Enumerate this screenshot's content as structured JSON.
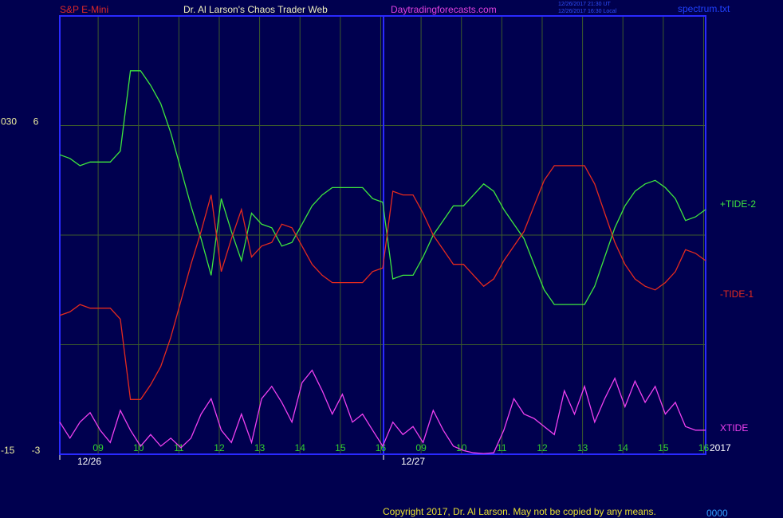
{
  "chart_data": {
    "type": "line",
    "instrument": "S&P E-Mini",
    "title": "Dr. Al Larson's Chaos Trader Web",
    "website": "Daytradingforecasts.com",
    "timestamps": [
      "12/26/2017 21:30 UT",
      "12/26/2017 16:30 Local"
    ],
    "file": "spectrum.txt",
    "year": "2017",
    "copyright": "Copyright 2017, Dr. Al Larson. May not be copied by any means.",
    "counter": "0000",
    "xlim": [
      0,
      16
    ],
    "ylim": [
      -3,
      9
    ],
    "y2lim": [
      -15,
      45
    ],
    "yticks": [
      -3,
      6
    ],
    "y2ticks": [
      -15,
      {
        "value": 30,
        "label": "030"
      }
    ],
    "ygrid": [
      -3,
      0,
      3,
      6,
      9
    ],
    "grid": true,
    "xticks": [
      {
        "value": 0.95,
        "label": "09"
      },
      {
        "value": 1.95,
        "label": "10"
      },
      {
        "value": 2.95,
        "label": "11"
      },
      {
        "value": 3.95,
        "label": "12"
      },
      {
        "value": 4.95,
        "label": "13"
      },
      {
        "value": 5.95,
        "label": "14"
      },
      {
        "value": 6.95,
        "label": "15"
      },
      {
        "value": 7.95,
        "label": "16"
      },
      {
        "value": 8.95,
        "label": "09"
      },
      {
        "value": 9.95,
        "label": "10"
      },
      {
        "value": 10.95,
        "label": "11"
      },
      {
        "value": 11.95,
        "label": "12"
      },
      {
        "value": 12.95,
        "label": "13"
      },
      {
        "value": 13.95,
        "label": "14"
      },
      {
        "value": 14.95,
        "label": "15"
      },
      {
        "value": 15.95,
        "label": "16"
      }
    ],
    "date_ticks": [
      {
        "value": 0,
        "label": "12/26"
      },
      {
        "value": 8.02,
        "label": "12/27"
      }
    ],
    "x": [
      0,
      0.25,
      0.5,
      0.75,
      1,
      1.25,
      1.5,
      1.75,
      2,
      2.25,
      2.5,
      2.75,
      3,
      3.25,
      3.5,
      3.75,
      4,
      4.25,
      4.5,
      4.75,
      5,
      5.25,
      5.5,
      5.75,
      6,
      6.25,
      6.5,
      6.75,
      7,
      7.25,
      7.5,
      7.75,
      8,
      8.25,
      8.5,
      8.75,
      9,
      9.25,
      9.5,
      9.75,
      10,
      10.25,
      10.5,
      10.75,
      11,
      11.25,
      11.5,
      11.75,
      12,
      12.25,
      12.5,
      12.75,
      13,
      13.25,
      13.5,
      13.75,
      14,
      14.25,
      14.5,
      14.75,
      15,
      15.25,
      15.5,
      15.75,
      16
    ],
    "series": [
      {
        "name": "+TIDE-2",
        "color": "#3ee63e",
        "axis": "y",
        "values": [
          5.2,
          5.1,
          4.9,
          5.0,
          5.0,
          5.0,
          5.3,
          7.5,
          7.5,
          7.1,
          6.6,
          5.8,
          4.8,
          3.8,
          2.9,
          1.9,
          4.0,
          3.1,
          2.3,
          3.6,
          3.3,
          3.2,
          2.7,
          2.8,
          3.3,
          3.8,
          4.1,
          4.3,
          4.3,
          4.3,
          4.3,
          4.0,
          3.9,
          1.8,
          1.9,
          1.9,
          2.4,
          3.0,
          3.4,
          3.8,
          3.8,
          4.1,
          4.4,
          4.2,
          3.7,
          3.3,
          2.9,
          2.2,
          1.5,
          1.1,
          1.1,
          1.1,
          1.1,
          1.6,
          2.4,
          3.2,
          3.8,
          4.2,
          4.4,
          4.5,
          4.3,
          4.0,
          3.4,
          3.5,
          3.7
        ]
      },
      {
        "name": "-TIDE-1",
        "color": "#e52a1e",
        "axis": "y",
        "values": [
          0.8,
          0.9,
          1.1,
          1.0,
          1.0,
          1.0,
          0.7,
          -1.5,
          -1.5,
          -1.1,
          -0.6,
          0.2,
          1.2,
          2.2,
          3.1,
          4.1,
          2.0,
          2.9,
          3.7,
          2.4,
          2.7,
          2.8,
          3.3,
          3.2,
          2.7,
          2.2,
          1.9,
          1.7,
          1.7,
          1.7,
          1.7,
          2.0,
          2.1,
          4.2,
          4.1,
          4.1,
          3.6,
          3.0,
          2.6,
          2.2,
          2.2,
          1.9,
          1.6,
          1.8,
          2.3,
          2.7,
          3.1,
          3.8,
          4.5,
          4.9,
          4.9,
          4.9,
          4.9,
          4.4,
          3.6,
          2.8,
          2.2,
          1.8,
          1.6,
          1.5,
          1.7,
          2.0,
          2.6,
          2.5,
          2.3
        ]
      },
      {
        "name": "XTIDE",
        "color": "#f040f0",
        "axis": "y2",
        "values": [
          -10.6,
          -12.8,
          -10.6,
          -9.3,
          -11.7,
          -13.4,
          -9.0,
          -11.7,
          -13.9,
          -12.3,
          -13.9,
          -12.8,
          -14.1,
          -12.8,
          -9.5,
          -7.4,
          -11.7,
          -13.4,
          -9.5,
          -13.4,
          -7.4,
          -5.7,
          -7.9,
          -10.6,
          -5.2,
          -3.5,
          -6.3,
          -9.5,
          -6.8,
          -10.6,
          -9.5,
          -11.7,
          -13.9,
          -10.6,
          -12.3,
          -11.2,
          -13.4,
          -9.0,
          -11.7,
          -13.9,
          -14.5,
          -14.8,
          -14.9,
          -14.8,
          -11.7,
          -7.4,
          -9.5,
          -10.1,
          -11.2,
          -12.3,
          -6.3,
          -9.5,
          -5.7,
          -10.6,
          -7.4,
          -4.6,
          -8.5,
          -5.0,
          -7.9,
          -5.7,
          -9.5,
          -7.9,
          -11.2,
          -11.7,
          -11.7
        ]
      }
    ]
  }
}
